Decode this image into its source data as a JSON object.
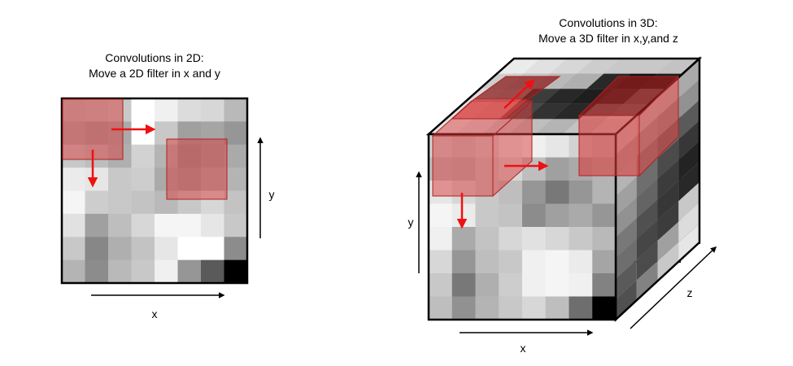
{
  "left_panel": {
    "title_line1": "Convolutions in 2D:",
    "title_line2": "Move a 2D filter in x and y",
    "x_label": "x",
    "y_label": "y",
    "grid_gray_levels": [
      [
        190,
        195,
        200,
        255,
        240,
        220,
        215,
        185
      ],
      [
        175,
        165,
        170,
        255,
        200,
        160,
        165,
        150
      ],
      [
        200,
        190,
        175,
        210,
        180,
        150,
        160,
        170
      ],
      [
        235,
        230,
        200,
        205,
        170,
        160,
        175,
        180
      ],
      [
        245,
        205,
        200,
        195,
        185,
        200,
        215,
        195
      ],
      [
        225,
        160,
        190,
        215,
        245,
        245,
        230,
        200
      ],
      [
        200,
        135,
        175,
        195,
        230,
        255,
        255,
        140
      ],
      [
        180,
        140,
        185,
        200,
        240,
        150,
        90,
        0
      ]
    ]
  },
  "right_panel": {
    "title_line1": "Convolutions in 3D:",
    "title_line2": "Move a 3D filter in x,y,and z",
    "x_label": "x",
    "y_label": "y",
    "z_label": "z",
    "front_gray_levels": [
      [
        210,
        200,
        210,
        230,
        240,
        230,
        210,
        200
      ],
      [
        190,
        185,
        200,
        215,
        190,
        160,
        170,
        180
      ],
      [
        230,
        215,
        200,
        190,
        150,
        120,
        150,
        180
      ],
      [
        245,
        235,
        200,
        195,
        140,
        160,
        170,
        150
      ],
      [
        240,
        170,
        195,
        215,
        225,
        215,
        200,
        185
      ],
      [
        215,
        150,
        190,
        200,
        240,
        245,
        235,
        165
      ],
      [
        200,
        120,
        175,
        205,
        240,
        245,
        240,
        130
      ],
      [
        190,
        145,
        180,
        200,
        215,
        190,
        110,
        0
      ]
    ],
    "top_gray_levels": [
      [
        235,
        225,
        215,
        205,
        200,
        200,
        195
      ],
      [
        205,
        195,
        185,
        175,
        40,
        20,
        30
      ],
      [
        220,
        210,
        60,
        40,
        30,
        60,
        175
      ],
      [
        225,
        215,
        70,
        50,
        40,
        200,
        220
      ],
      [
        230,
        220,
        205,
        190,
        180,
        195,
        210
      ]
    ],
    "side_gray_levels": [
      [
        210,
        195,
        190,
        170
      ],
      [
        175,
        160,
        150,
        145
      ],
      [
        180,
        130,
        105,
        90
      ],
      [
        160,
        110,
        75,
        55
      ],
      [
        145,
        100,
        60,
        35
      ],
      [
        120,
        80,
        55,
        40
      ],
      [
        110,
        70,
        60,
        200
      ],
      [
        90,
        75,
        160,
        220
      ],
      [
        80,
        130,
        200,
        230
      ]
    ]
  },
  "colors": {
    "filter_fill": "#d93b3b",
    "filter_dark_fill": "#8b1c1c",
    "filter_stroke": "#b02020",
    "arrow_red": "#ee1111",
    "outline": "#000000"
  }
}
